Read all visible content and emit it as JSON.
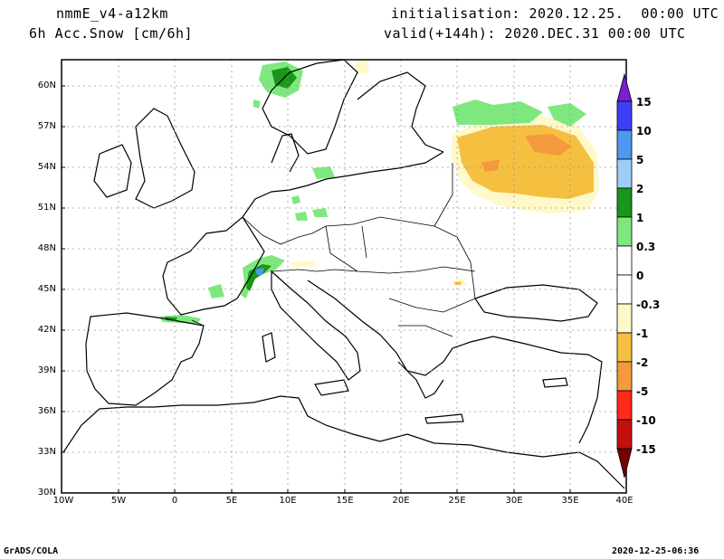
{
  "header": {
    "model": "nmmE_v4-a12km",
    "field": "6h Acc.Snow [cm/6h]",
    "init": "initialisation: 2020.12.25.  00:00 UTC",
    "valid": "valid(+144h): 2020.DEC.31 00:00 UTC"
  },
  "map": {
    "lat_labels": [
      "60N",
      "57N",
      "54N",
      "51N",
      "48N",
      "45N",
      "42N",
      "39N",
      "36N",
      "33N",
      "30N"
    ],
    "lon_labels": [
      "10W",
      "5W",
      "0",
      "5E",
      "10E",
      "15E",
      "20E",
      "25E",
      "30E",
      "35E",
      "40E"
    ],
    "extent": {
      "lon_min": -10,
      "lon_max": 40,
      "lat_min": 30,
      "lat_max": 62
    }
  },
  "colorbar": {
    "labels": [
      "15",
      "10",
      "5",
      "2",
      "1",
      "0.3",
      "0",
      "-0.3",
      "-1",
      "-2",
      "-5",
      "-10",
      "-15"
    ],
    "colors": [
      "#7a1fd6",
      "#3e3ef5",
      "#4f98f0",
      "#9ecef7",
      "#1a961a",
      "#7ee87e",
      "#ffffff",
      "#fff8c8",
      "#f5c040",
      "#f59a3c",
      "#ff2a1a",
      "#c40f0f",
      "#7a0000"
    ]
  },
  "footer": {
    "left": "GrADS/COLA",
    "right": "2020-12-25-06:36"
  }
}
